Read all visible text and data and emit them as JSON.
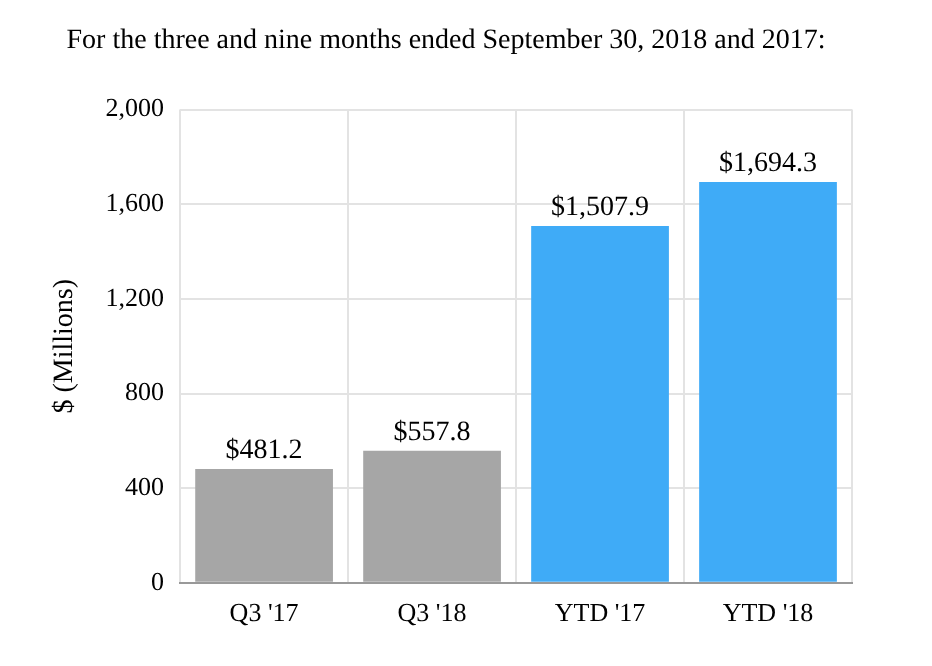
{
  "chart_data": {
    "type": "bar",
    "title": "For the three and nine months ended September 30, 2018 and 2017:",
    "ylabel": "$ (Millions)",
    "categories": [
      "Q3 '17",
      "Q3 '18",
      "YTD '17",
      "YTD '18"
    ],
    "values": [
      481.2,
      557.8,
      1507.9,
      1694.3
    ],
    "colors": [
      "#a6a6a6",
      "#a6a6a6",
      "#3fabf7",
      "#3fabf7"
    ],
    "value_labels": [
      "$481.2",
      "$557.8",
      "$1,507.9",
      "$1,694.3"
    ],
    "ylim": [
      0,
      2000
    ],
    "yticks": [
      0,
      400,
      800,
      {
        "value": 1200,
        "label": "1,200"
      },
      {
        "value": 1600,
        "label": "1,600"
      },
      {
        "value": 2000,
        "label": "2,000"
      }
    ],
    "grid": true
  }
}
